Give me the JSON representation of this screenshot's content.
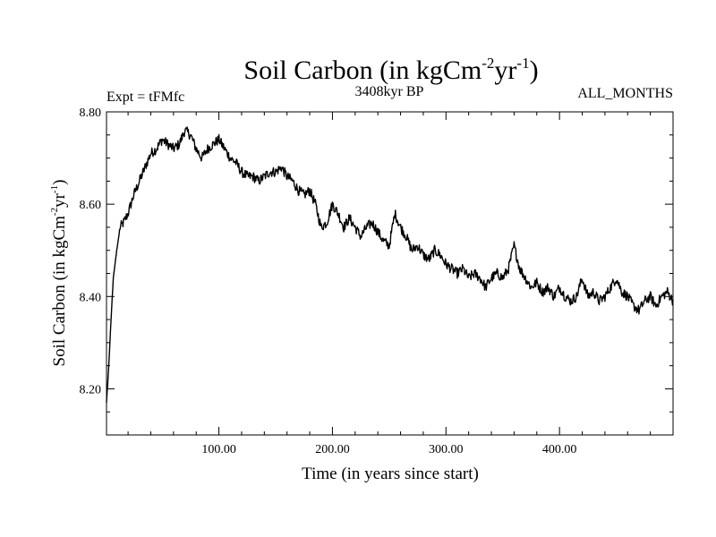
{
  "chart_data": {
    "type": "line",
    "title": {
      "text": "Soil Carbon (in kgCm",
      "sup1": "-2",
      "mid": "yr",
      "sup2": "-1",
      "end": ")"
    },
    "left_label": "Expt = tFMfc",
    "center_label": "3408kyr BP",
    "right_label": "ALL_MONTHS",
    "xlabel": "Time (in years since start)",
    "ylabel": {
      "text": "Soil Carbon (in kgCm",
      "sup1": "-2",
      "mid": "yr",
      "sup2": "-1",
      "end": ")"
    },
    "xlim": [
      1,
      500
    ],
    "ylim": [
      8.1,
      8.8
    ],
    "x_ticks": [
      100,
      200,
      300,
      400
    ],
    "x_tick_labels": [
      "100.00",
      "200.00",
      "300.00",
      "400.00"
    ],
    "y_ticks": [
      8.2,
      8.4,
      8.6,
      8.8
    ],
    "y_tick_labels": [
      "8.20",
      "8.40",
      "8.60",
      "8.80"
    ],
    "grid": false,
    "series": [
      {
        "name": "Soil Carbon",
        "color": "#000000",
        "x": [
          1,
          3,
          5,
          7,
          10,
          13,
          16,
          20,
          25,
          30,
          35,
          40,
          45,
          50,
          55,
          60,
          65,
          70,
          75,
          80,
          85,
          90,
          95,
          100,
          105,
          110,
          115,
          120,
          125,
          130,
          135,
          140,
          145,
          150,
          155,
          160,
          165,
          170,
          175,
          180,
          185,
          190,
          195,
          200,
          205,
          210,
          215,
          220,
          225,
          230,
          235,
          240,
          245,
          250,
          255,
          260,
          265,
          270,
          275,
          280,
          285,
          290,
          295,
          300,
          305,
          310,
          315,
          320,
          325,
          330,
          335,
          340,
          345,
          350,
          355,
          360,
          365,
          370,
          375,
          380,
          385,
          390,
          395,
          400,
          405,
          410,
          415,
          420,
          425,
          430,
          435,
          440,
          445,
          450,
          455,
          460,
          465,
          470,
          475,
          480,
          485,
          490,
          495,
          500
        ],
        "values": [
          8.17,
          8.25,
          8.35,
          8.44,
          8.5,
          8.55,
          8.56,
          8.58,
          8.62,
          8.65,
          8.68,
          8.71,
          8.72,
          8.74,
          8.73,
          8.72,
          8.73,
          8.76,
          8.75,
          8.72,
          8.7,
          8.72,
          8.73,
          8.74,
          8.72,
          8.7,
          8.69,
          8.67,
          8.66,
          8.66,
          8.65,
          8.66,
          8.67,
          8.67,
          8.68,
          8.66,
          8.65,
          8.63,
          8.62,
          8.63,
          8.6,
          8.55,
          8.56,
          8.6,
          8.58,
          8.55,
          8.57,
          8.55,
          8.53,
          8.55,
          8.56,
          8.54,
          8.52,
          8.51,
          8.58,
          8.55,
          8.53,
          8.5,
          8.51,
          8.49,
          8.48,
          8.5,
          8.49,
          8.47,
          8.46,
          8.45,
          8.46,
          8.44,
          8.45,
          8.44,
          8.42,
          8.44,
          8.45,
          8.44,
          8.46,
          8.51,
          8.46,
          8.44,
          8.42,
          8.43,
          8.41,
          8.42,
          8.4,
          8.42,
          8.4,
          8.39,
          8.4,
          8.44,
          8.4,
          8.41,
          8.39,
          8.4,
          8.42,
          8.44,
          8.41,
          8.4,
          8.38,
          8.37,
          8.39,
          8.4,
          8.38,
          8.4,
          8.41,
          8.39
        ]
      }
    ]
  }
}
